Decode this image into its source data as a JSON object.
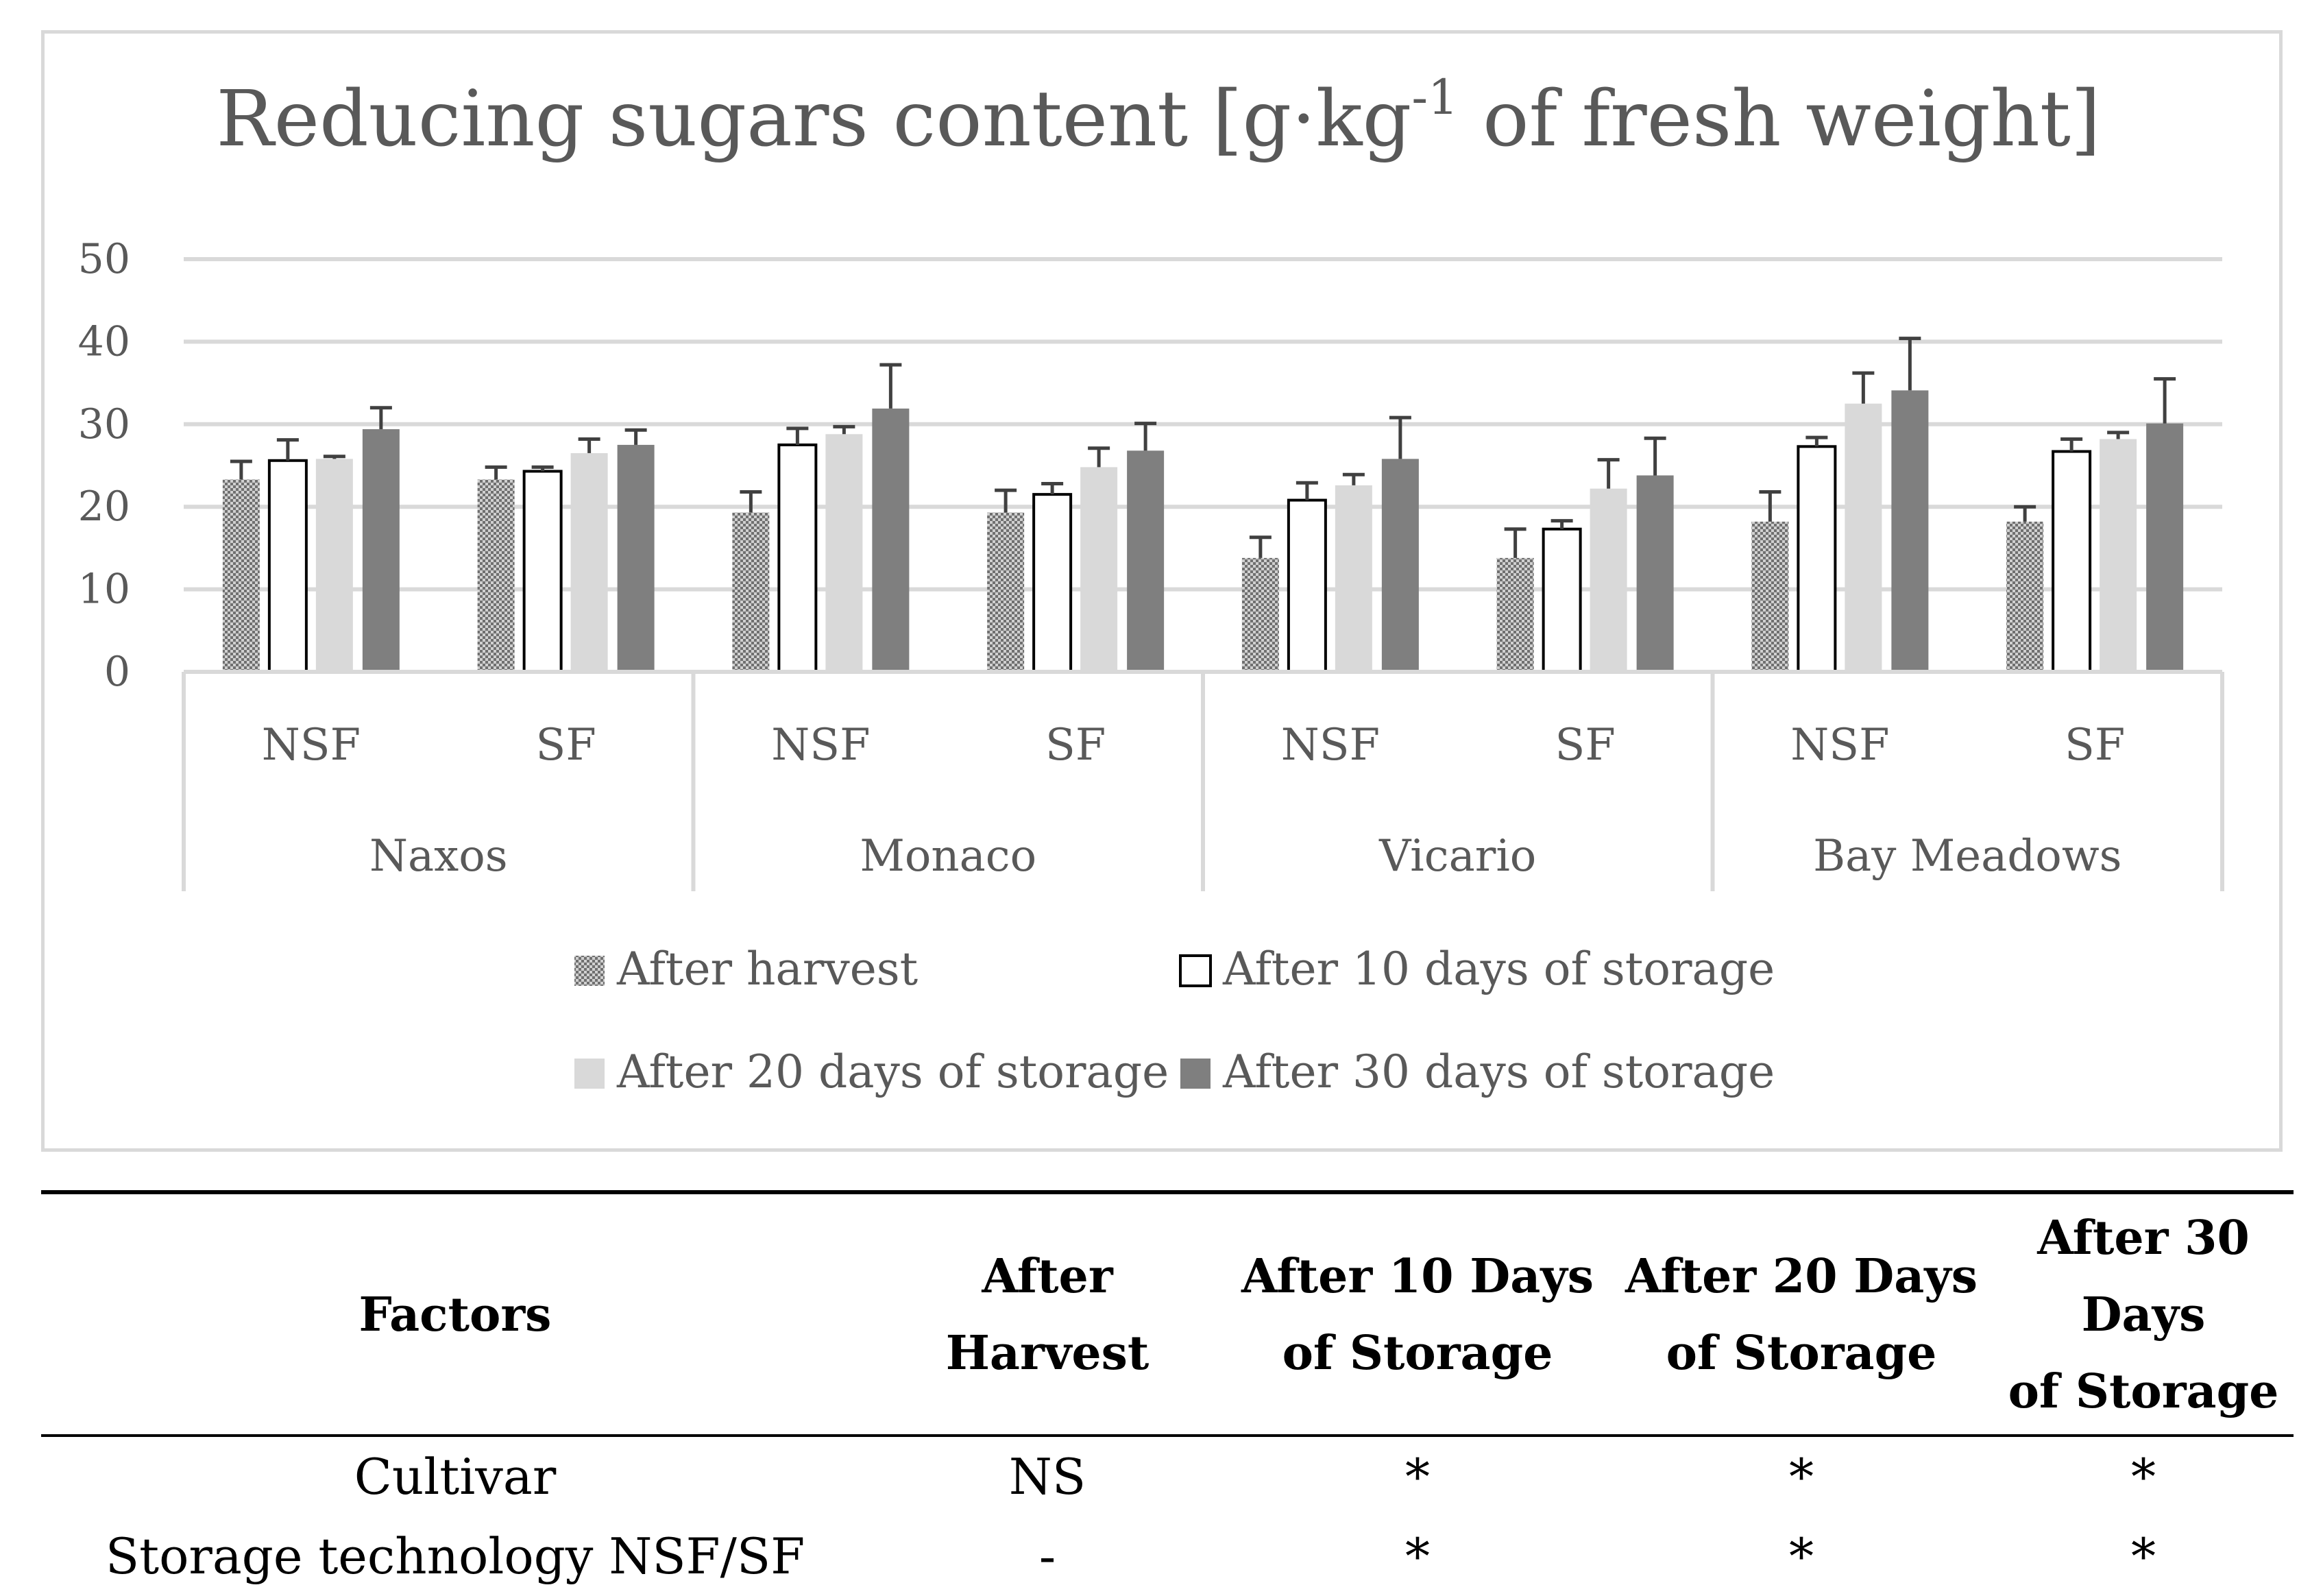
{
  "chart_data": {
    "type": "bar",
    "title_main": "Reducing sugars content [g·kg",
    "title_sup": "-1",
    "title_rest": " of fresh weight]",
    "ylim": [
      0,
      50
    ],
    "yticks": [
      "0",
      "10",
      "20",
      "30",
      "40",
      "50"
    ],
    "grid": true,
    "legend_position": "bottom",
    "cultivars": [
      "Naxos",
      "Monaco",
      "Vicario",
      "Bay Meadows"
    ],
    "technologies": [
      "NSF",
      "SF"
    ],
    "categories": [
      "Naxos NSF",
      "Naxos SF",
      "Monaco NSF",
      "Monaco SF",
      "Vicario NSF",
      "Vicario SF",
      "Bay Meadows NSF",
      "Bay Meadows SF"
    ],
    "series": [
      {
        "name": "After harvest",
        "color": "#bfbfbf",
        "pattern": "checker",
        "values": [
          23.3,
          23.3,
          19.3,
          19.3,
          13.8,
          13.8,
          18.2,
          18.2
        ],
        "errors": [
          2.2,
          1.5,
          2.5,
          2.7,
          2.5,
          3.5,
          3.6,
          1.8
        ]
      },
      {
        "name": "After 10 days of storage",
        "color": "#ffffff",
        "pattern": "outline",
        "values": [
          25.6,
          24.3,
          27.5,
          21.5,
          20.8,
          17.3,
          27.3,
          26.7
        ],
        "errors": [
          2.5,
          0.5,
          2.0,
          1.3,
          2.1,
          1.0,
          1.1,
          1.5
        ]
      },
      {
        "name": "After 20 days of storage",
        "color": "#d9d9d9",
        "pattern": "solid",
        "values": [
          25.8,
          26.5,
          28.8,
          24.8,
          22.6,
          22.2,
          32.5,
          28.2
        ],
        "errors": [
          0.3,
          1.7,
          0.9,
          2.3,
          1.3,
          3.5,
          3.7,
          0.8
        ]
      },
      {
        "name": "After 30 days of storage",
        "color": "#7f7f7f",
        "pattern": "solid",
        "values": [
          29.4,
          27.5,
          31.9,
          26.8,
          25.8,
          23.8,
          34.1,
          30.1
        ],
        "errors": [
          2.6,
          1.8,
          5.3,
          3.3,
          5.0,
          4.5,
          6.3,
          5.4
        ]
      }
    ]
  },
  "table": {
    "headers": [
      {
        "line1": "Factors",
        "line2": ""
      },
      {
        "line1": "After",
        "line2": "Harvest"
      },
      {
        "line1": "After 10 Days",
        "line2": "of Storage"
      },
      {
        "line1": "After 20 Days",
        "line2": "of Storage"
      },
      {
        "line1": "After 30 Days",
        "line2": "of Storage"
      }
    ],
    "rows": [
      {
        "factor": "Cultivar",
        "c1": "NS",
        "c2": "*",
        "c3": "*",
        "c4": "*"
      },
      {
        "factor": "Storage technology NSF/SF",
        "c1": "-",
        "c2": "*",
        "c3": "*",
        "c4": "*"
      }
    ]
  }
}
